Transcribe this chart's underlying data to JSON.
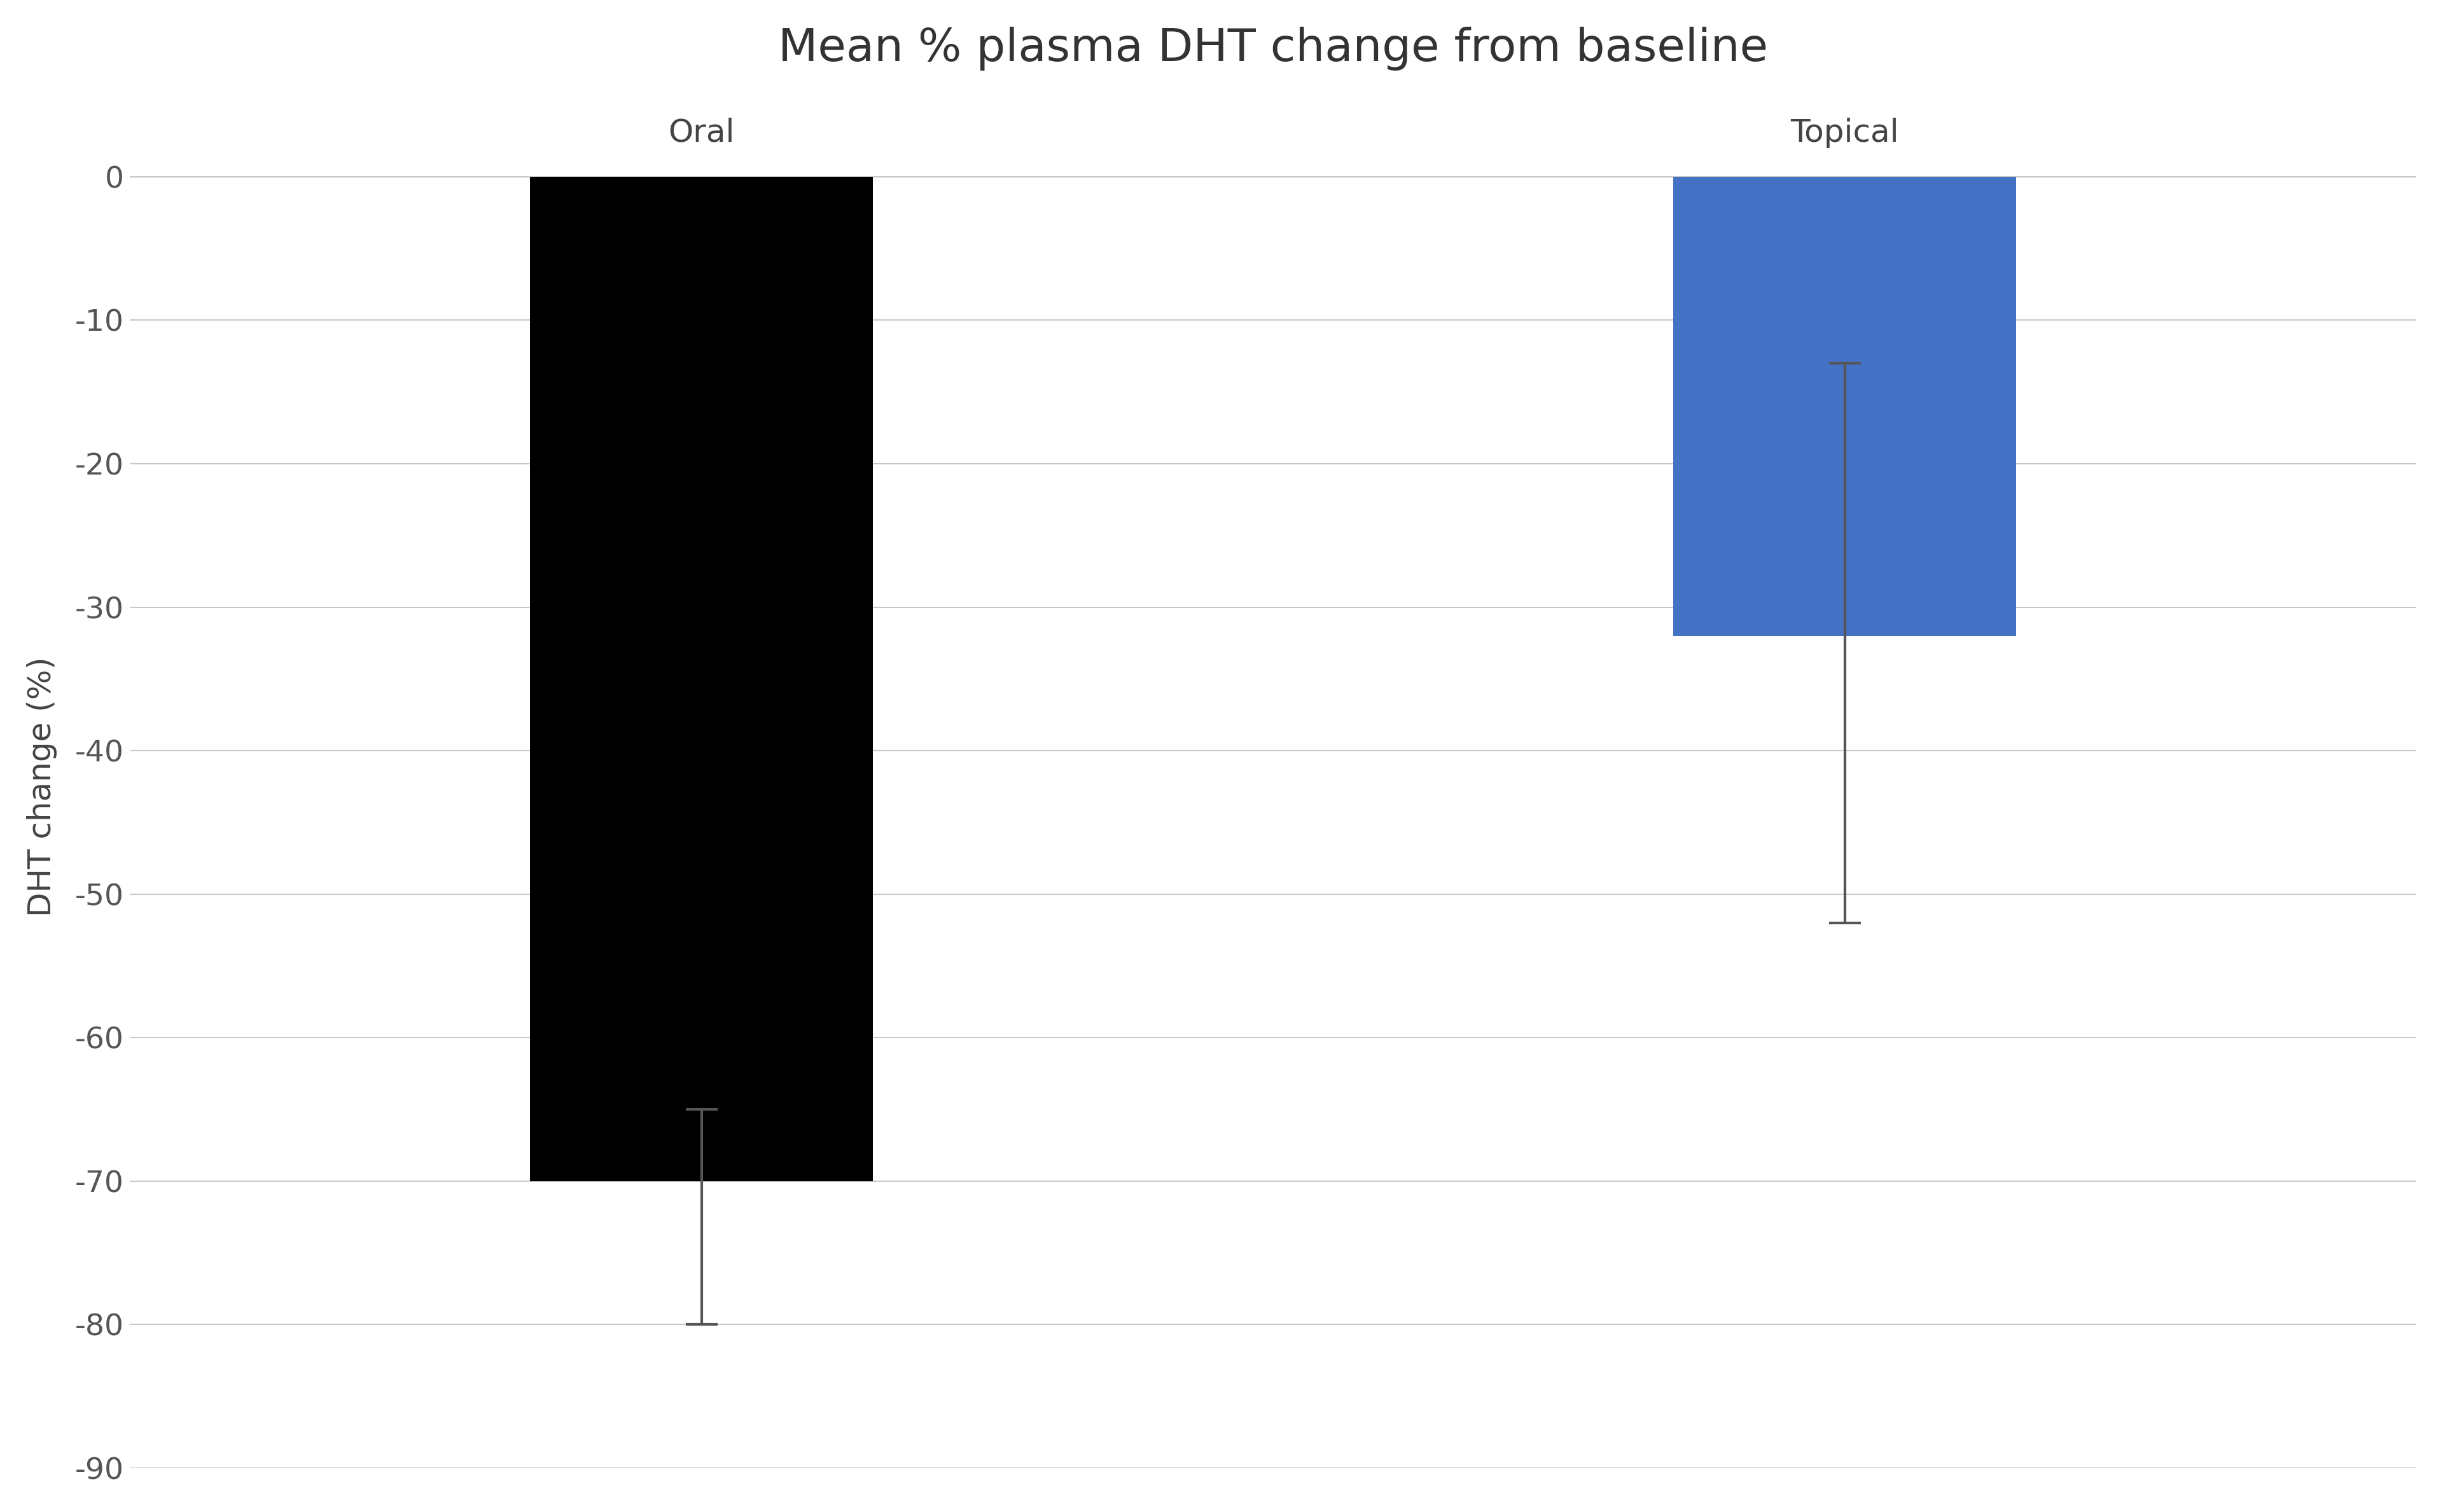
{
  "title": "Mean % plasma DHT change from baseline",
  "ylabel": "DHT change (%)",
  "categories": [
    "Oral",
    "Topical"
  ],
  "values": [
    -70,
    -32
  ],
  "bar_colors": [
    "#000000",
    "#4472c4"
  ],
  "bar_width": 0.6,
  "ylim": [
    -90,
    5
  ],
  "yticks": [
    0,
    -10,
    -20,
    -30,
    -40,
    -50,
    -60,
    -70,
    -80,
    -90
  ],
  "background_color": "#ffffff",
  "grid_color": "#c8c8c8",
  "title_fontsize": 52,
  "label_fontsize": 36,
  "tick_fontsize": 34,
  "category_label_fontsize": 36,
  "oral_error_low": 10,
  "oral_error_high": 5,
  "topical_error_low": 20,
  "topical_error_high": 19,
  "x_positions": [
    1,
    3
  ],
  "xlim": [
    0,
    4
  ]
}
